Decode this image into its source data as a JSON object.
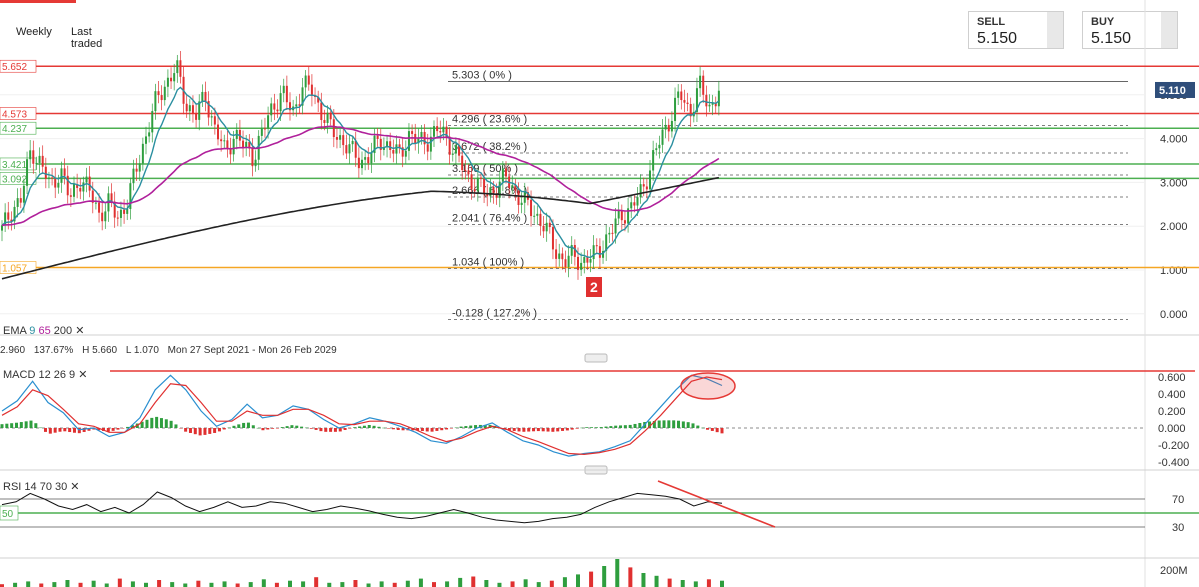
{
  "toolbar": {
    "weekly_label": "Weekly",
    "last_traded_label": "Last traded"
  },
  "quotes": {
    "sell_label": "SELL",
    "sell_value": "5.150",
    "buy_label": "BUY",
    "buy_value": "5.150"
  },
  "indicators": {
    "ema_label": "EMA",
    "ema_fast": "9",
    "ema_mid": "65",
    "ema_slow": "200",
    "macd_label": "MACD",
    "macd_params": "12  26  9",
    "rsi_label": "RSI",
    "rsi_params": "14  70  30"
  },
  "info_row": {
    "v1": "2.960",
    "v2": "137.67%",
    "high": "H 5.660",
    "low": "L 1.070",
    "range": "Mon 27 Sept 2021 - Mon 26 Feb 2029"
  },
  "colors": {
    "up": "#2e9e3e",
    "down": "#e03030",
    "ema9": "#2a8fa0",
    "ema65": "#b0209b",
    "ema200": "#222222",
    "red_level": "#e53935",
    "green_level": "#4caf50",
    "orange_level": "#f5a623",
    "last_price_bg": "#2f4e7a"
  },
  "chart_data": [
    {
      "type": "candlestick",
      "title": "",
      "yaxis": {
        "ticks": [
          "1.000",
          "2.000",
          "3.000",
          "4.000",
          "5.000"
        ],
        "partial_top_tick": "5.000",
        "extra_tick": "0.000",
        "range": [
          -0.2,
          5.75
        ]
      },
      "last_price": "5.110",
      "horizontal_levels": [
        {
          "value": 5.652,
          "label": "5.652",
          "color": "red"
        },
        {
          "value": 4.573,
          "label": "4.573",
          "color": "red"
        },
        {
          "value": 4.237,
          "label": "4.237",
          "color": "green"
        },
        {
          "value": 3.421,
          "label": "3.421",
          "color": "green"
        },
        {
          "value": 3.092,
          "label": "3.092",
          "color": "green"
        },
        {
          "value": 1.057,
          "label": "1.057",
          "color": "orange"
        }
      ],
      "fibonacci": [
        {
          "value": 5.303,
          "label": "5.303 ( 0% )"
        },
        {
          "value": 4.296,
          "label": "4.296 ( 23.6% )"
        },
        {
          "value": 3.672,
          "label": "3.672 ( 38.2% )"
        },
        {
          "value": 3.169,
          "label": "3.169 ( 50% )"
        },
        {
          "value": 2.666,
          "label": "2.666 ( 61.8% )"
        },
        {
          "value": 2.041,
          "label": "2.041 ( 76.4% )"
        },
        {
          "value": 1.034,
          "label": "1.034 ( 100% )"
        },
        {
          "value": -0.128,
          "label": "-0.128 ( 127.2% )"
        }
      ],
      "marker": "2",
      "close_path": [
        1.9,
        2.4,
        2.6,
        3.8,
        3.4,
        2.9,
        3.3,
        2.6,
        3.1,
        2.8,
        2.3,
        2.5,
        2.2,
        2.6,
        3.4,
        4.2,
        4.9,
        5.3,
        5.6,
        4.8,
        4.5,
        5.0,
        4.2,
        3.7,
        4.1,
        3.8,
        3.6,
        4.2,
        4.8,
        5.0,
        4.6,
        5.2,
        5.1,
        4.6,
        4.2,
        4.0,
        3.7,
        3.5,
        3.6,
        4.0,
        3.8,
        3.6,
        4.1,
        3.9,
        4.0,
        4.2,
        4.0,
        3.6,
        3.1,
        3.0,
        2.7,
        2.9,
        3.1,
        2.8,
        2.5,
        2.3,
        2.0,
        1.5,
        1.2,
        1.3,
        1.2,
        1.3,
        1.6,
        1.9,
        2.3,
        2.4,
        2.8,
        3.4,
        4.0,
        4.5,
        5.0,
        4.6,
        5.2,
        4.7,
        5.1
      ]
    },
    {
      "type": "line",
      "title": "",
      "yaxis": {
        "ticks": [
          "0.600",
          "0.400",
          "0.200",
          "0.000",
          "-0.200",
          "-0.400"
        ],
        "range": [
          -0.48,
          0.68
        ]
      },
      "series": [
        {
          "values": [
            0.2,
            0.32,
            0.55,
            0.3,
            0.18,
            -0.02,
            0.0,
            -0.1,
            -0.05,
            0.12,
            0.45,
            0.62,
            0.45,
            0.2,
            0.02,
            0.1,
            0.28,
            0.12,
            0.15,
            0.26,
            0.22,
            0.1,
            0.0,
            0.05,
            0.12,
            0.08,
            0.02,
            -0.05,
            -0.15,
            -0.18,
            -0.1,
            0.0,
            0.06,
            -0.05,
            -0.15,
            -0.2,
            -0.28,
            -0.33,
            -0.3,
            -0.28,
            -0.22,
            -0.15,
            0.05,
            0.25,
            0.45,
            0.62,
            0.58,
            0.5
          ]
        },
        {
          "values": [
            0.15,
            0.25,
            0.45,
            0.38,
            0.22,
            0.05,
            0.02,
            -0.05,
            -0.05,
            0.05,
            0.3,
            0.52,
            0.5,
            0.3,
            0.08,
            0.08,
            0.2,
            0.15,
            0.15,
            0.22,
            0.22,
            0.15,
            0.05,
            0.04,
            0.08,
            0.08,
            0.05,
            -0.02,
            -0.1,
            -0.16,
            -0.12,
            -0.04,
            0.02,
            -0.02,
            -0.1,
            -0.16,
            -0.23,
            -0.3,
            -0.31,
            -0.29,
            -0.25,
            -0.19,
            -0.03,
            0.15,
            0.35,
            0.55,
            0.6,
            0.57
          ]
        }
      ]
    },
    {
      "type": "line",
      "title": "",
      "yaxis": {
        "ticks": [
          "70",
          "30"
        ],
        "range": [
          20,
          85
        ]
      },
      "level_labels": {
        "mid": "50"
      },
      "series": [
        {
          "values": [
            62,
            66,
            78,
            70,
            60,
            55,
            62,
            52,
            58,
            50,
            62,
            80,
            72,
            60,
            52,
            58,
            66,
            58,
            60,
            66,
            64,
            58,
            52,
            55,
            60,
            57,
            53,
            48,
            44,
            42,
            45,
            50,
            55,
            50,
            44,
            40,
            38,
            36,
            38,
            42,
            44,
            48,
            58,
            66,
            72,
            78,
            76,
            74,
            70,
            60,
            66,
            64
          ]
        }
      ]
    },
    {
      "type": "bar",
      "title": "",
      "yaxis": {
        "ticks": [
          "200M"
        ]
      },
      "values": [
        4,
        6,
        8,
        5,
        7,
        10,
        6,
        9,
        5,
        12,
        8,
        6,
        10,
        7,
        5,
        9,
        6,
        8,
        5,
        7,
        11,
        6,
        9,
        8,
        14,
        6,
        7,
        10,
        5,
        8,
        6,
        9,
        12,
        7,
        8,
        13,
        15,
        10,
        6,
        8,
        11,
        7,
        9,
        14,
        18,
        22,
        30,
        40,
        28,
        20,
        16,
        12,
        10,
        8,
        11,
        9
      ]
    }
  ]
}
